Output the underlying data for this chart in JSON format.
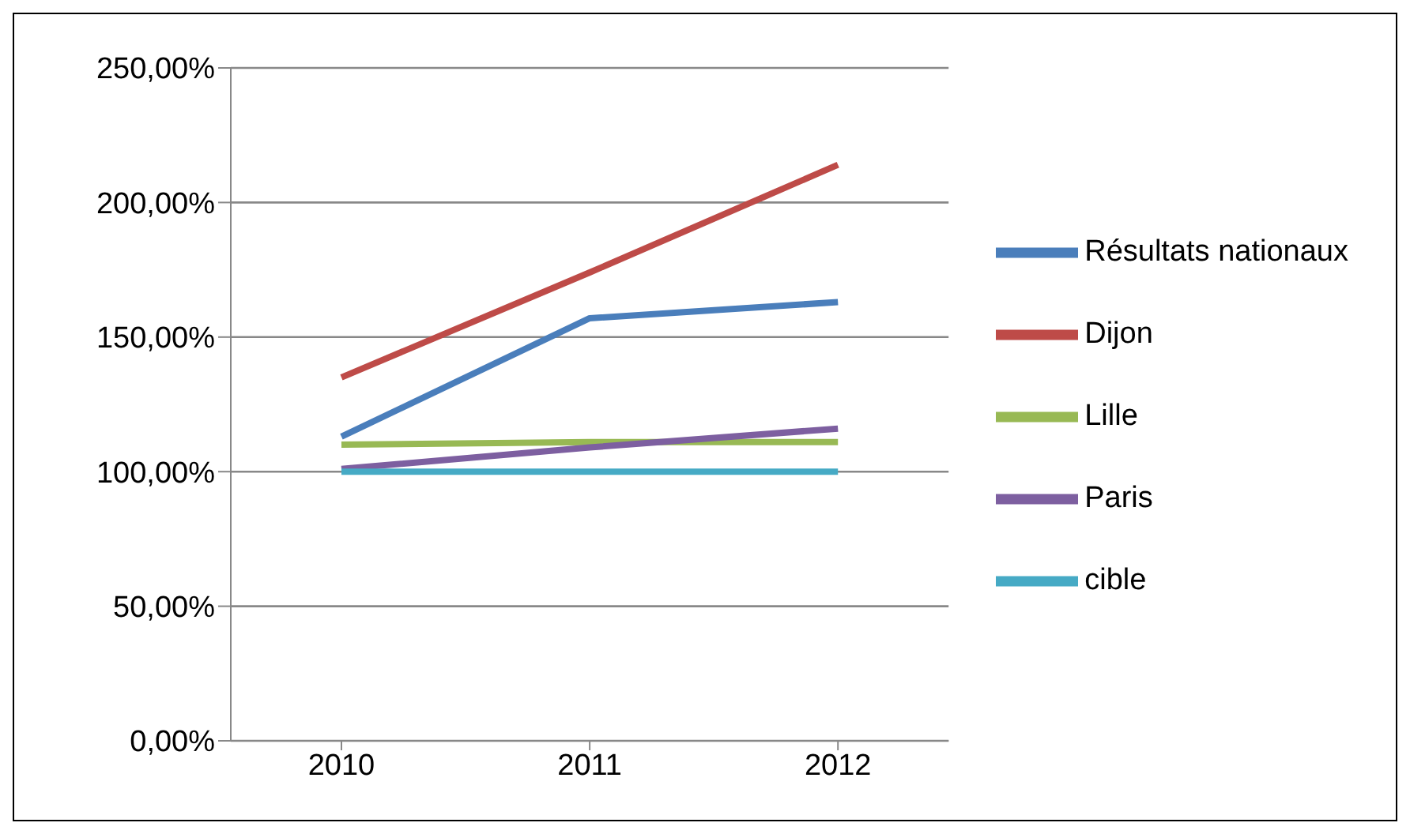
{
  "chart_data": {
    "type": "line",
    "categories": [
      "2010",
      "2011",
      "2012"
    ],
    "series": [
      {
        "name": "Résultats nationaux",
        "color": "#4a7ebb",
        "values": [
          113,
          157,
          163
        ]
      },
      {
        "name": "Dijon",
        "color": "#be4b48",
        "values": [
          135,
          174,
          214
        ]
      },
      {
        "name": "Lille",
        "color": "#98b954",
        "values": [
          110,
          111,
          111
        ]
      },
      {
        "name": "Paris",
        "color": "#7d5fa0",
        "values": [
          101,
          109,
          116
        ]
      },
      {
        "name": "cible",
        "color": "#46aac5",
        "values": [
          100,
          100,
          100
        ]
      }
    ],
    "ylim": [
      0,
      250
    ],
    "yticks": [
      {
        "value": 0,
        "label": "0,00%"
      },
      {
        "value": 50,
        "label": "50,00%"
      },
      {
        "value": 100,
        "label": "100,00%"
      },
      {
        "value": 150,
        "label": "150,00%"
      },
      {
        "value": 200,
        "label": "200,00%"
      },
      {
        "value": 250,
        "label": "250,00%"
      }
    ],
    "grid": "y",
    "legend": "right",
    "marker": "none",
    "line_style": "solid"
  }
}
